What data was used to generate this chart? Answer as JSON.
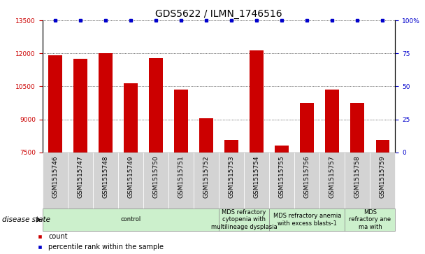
{
  "title": "GDS5622 / ILMN_1746516",
  "samples": [
    "GSM1515746",
    "GSM1515747",
    "GSM1515748",
    "GSM1515749",
    "GSM1515750",
    "GSM1515751",
    "GSM1515752",
    "GSM1515753",
    "GSM1515754",
    "GSM1515755",
    "GSM1515756",
    "GSM1515757",
    "GSM1515758",
    "GSM1515759"
  ],
  "counts": [
    11900,
    11750,
    12000,
    10650,
    11800,
    10350,
    9050,
    8050,
    12150,
    7800,
    9750,
    10350,
    9750,
    8050
  ],
  "percentile_ranks": [
    100,
    100,
    100,
    100,
    100,
    100,
    100,
    100,
    100,
    100,
    100,
    100,
    100,
    100
  ],
  "bar_color": "#cc0000",
  "percentile_color": "#0000cc",
  "ymin": 7500,
  "ymax": 13500,
  "yticks": [
    7500,
    9000,
    10500,
    12000,
    13500
  ],
  "y2ticks": [
    0,
    25,
    50,
    75,
    100
  ],
  "y2tick_labels": [
    "0",
    "25",
    "50",
    "75",
    "100%"
  ],
  "disease_groups": [
    {
      "label": "control",
      "start": 0,
      "end": 7,
      "color": "#ccf0cc"
    },
    {
      "label": "MDS refractory\ncytopenia with\nmultilineage dysplasia",
      "start": 7,
      "end": 9,
      "color": "#ccf0cc"
    },
    {
      "label": "MDS refractory anemia\nwith excess blasts-1",
      "start": 9,
      "end": 12,
      "color": "#ccf0cc"
    },
    {
      "label": "MDS\nrefractory ane\nma with",
      "start": 12,
      "end": 14,
      "color": "#ccf0cc"
    }
  ],
  "disease_state_label": "disease state",
  "legend_count_label": "count",
  "legend_percentile_label": "percentile rank within the sample",
  "bar_width": 0.55,
  "tick_label_fontsize": 6.5,
  "title_fontsize": 10,
  "group_label_fontsize": 6,
  "legend_fontsize": 7
}
